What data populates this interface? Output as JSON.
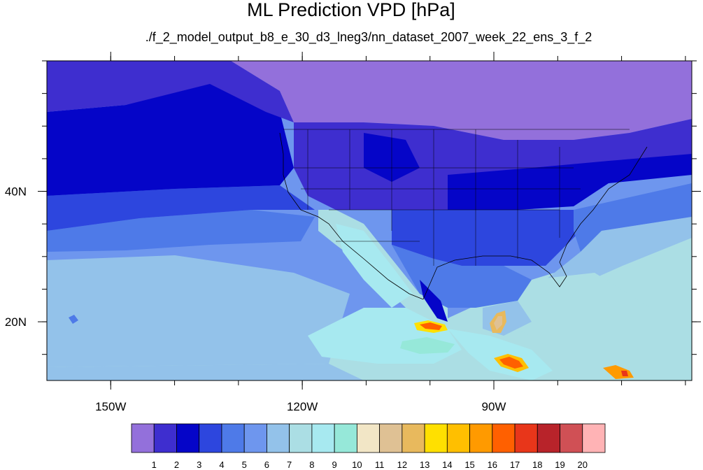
{
  "chart_data": {
    "type": "heatmap",
    "title": "ML Prediction VPD [hPa]",
    "subtitle": "./f_2_model_output_b8_e_30_d3_lneg3/nn_dataset_2007_week_22_ens_3_f_2",
    "x_ticks": [
      {
        "value": -150,
        "label": "150W"
      },
      {
        "value": -120,
        "label": "120W"
      },
      {
        "value": -90,
        "label": "90W"
      }
    ],
    "y_ticks": [
      {
        "value": 40,
        "label": "40N"
      },
      {
        "value": 20,
        "label": "20N"
      }
    ],
    "lon_range": [
      -160,
      -59
    ],
    "lat_range": [
      11,
      60
    ],
    "colorbar": {
      "levels": [
        "1",
        "2",
        "3",
        "4",
        "5",
        "6",
        "7",
        "8",
        "9",
        "10",
        "11",
        "12",
        "13",
        "14",
        "15",
        "16",
        "17",
        "18",
        "19",
        "20"
      ],
      "colors": [
        "#9370DB",
        "#3E2ECF",
        "#0505C8",
        "#2D46DE",
        "#4E7AE8",
        "#6E96EE",
        "#93C2EA",
        "#ABDEE4",
        "#A7E9F0",
        "#96E8D9",
        "#F2E6C6",
        "#DFC194",
        "#E8B95D",
        "#FFE000",
        "#FFBF00",
        "#FF9A00",
        "#FF6000",
        "#E8361A",
        "#B8232A",
        "#D05055",
        "#FFB3B5"
      ]
    }
  }
}
